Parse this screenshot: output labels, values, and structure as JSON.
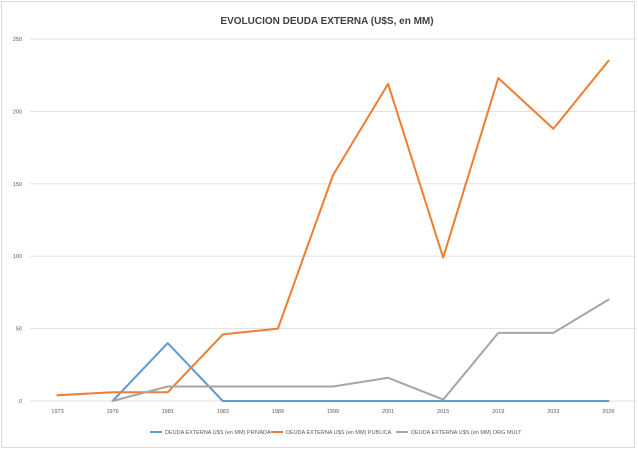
{
  "chart_data": {
    "type": "line",
    "title": "EVOLUCION DEUDA EXTERNA (U$S, en MM)",
    "xlabel": "",
    "ylabel": "",
    "categories": [
      "1973",
      "1976",
      "1981",
      "1983",
      "1989",
      "1999",
      "2001",
      "2015",
      "2019",
      "2023",
      "2026"
    ],
    "ylim": [
      0,
      250
    ],
    "yticks": [
      0,
      50,
      100,
      150,
      200,
      250
    ],
    "grid": true,
    "legend": "bottom",
    "series": [
      {
        "name": "DEUDA EXTERNA U$S (en MM) PRIVADA",
        "color": "#5b9bd5",
        "values": [
          null,
          0,
          40,
          0,
          0,
          0,
          0,
          0,
          0,
          0,
          0
        ]
      },
      {
        "name": "DEUDA EXTERNA U$S (en MM) PUBLICA",
        "color": "#ed7d31",
        "values": [
          4,
          6,
          6,
          46,
          50,
          156,
          219,
          99,
          223,
          188,
          235
        ]
      },
      {
        "name": "DEUDA EXTERNA U$S (en MM) ORG MULT",
        "color": "#a5a5a5",
        "values": [
          null,
          0,
          10,
          10,
          10,
          10,
          16,
          1,
          47,
          47,
          70
        ]
      }
    ]
  }
}
